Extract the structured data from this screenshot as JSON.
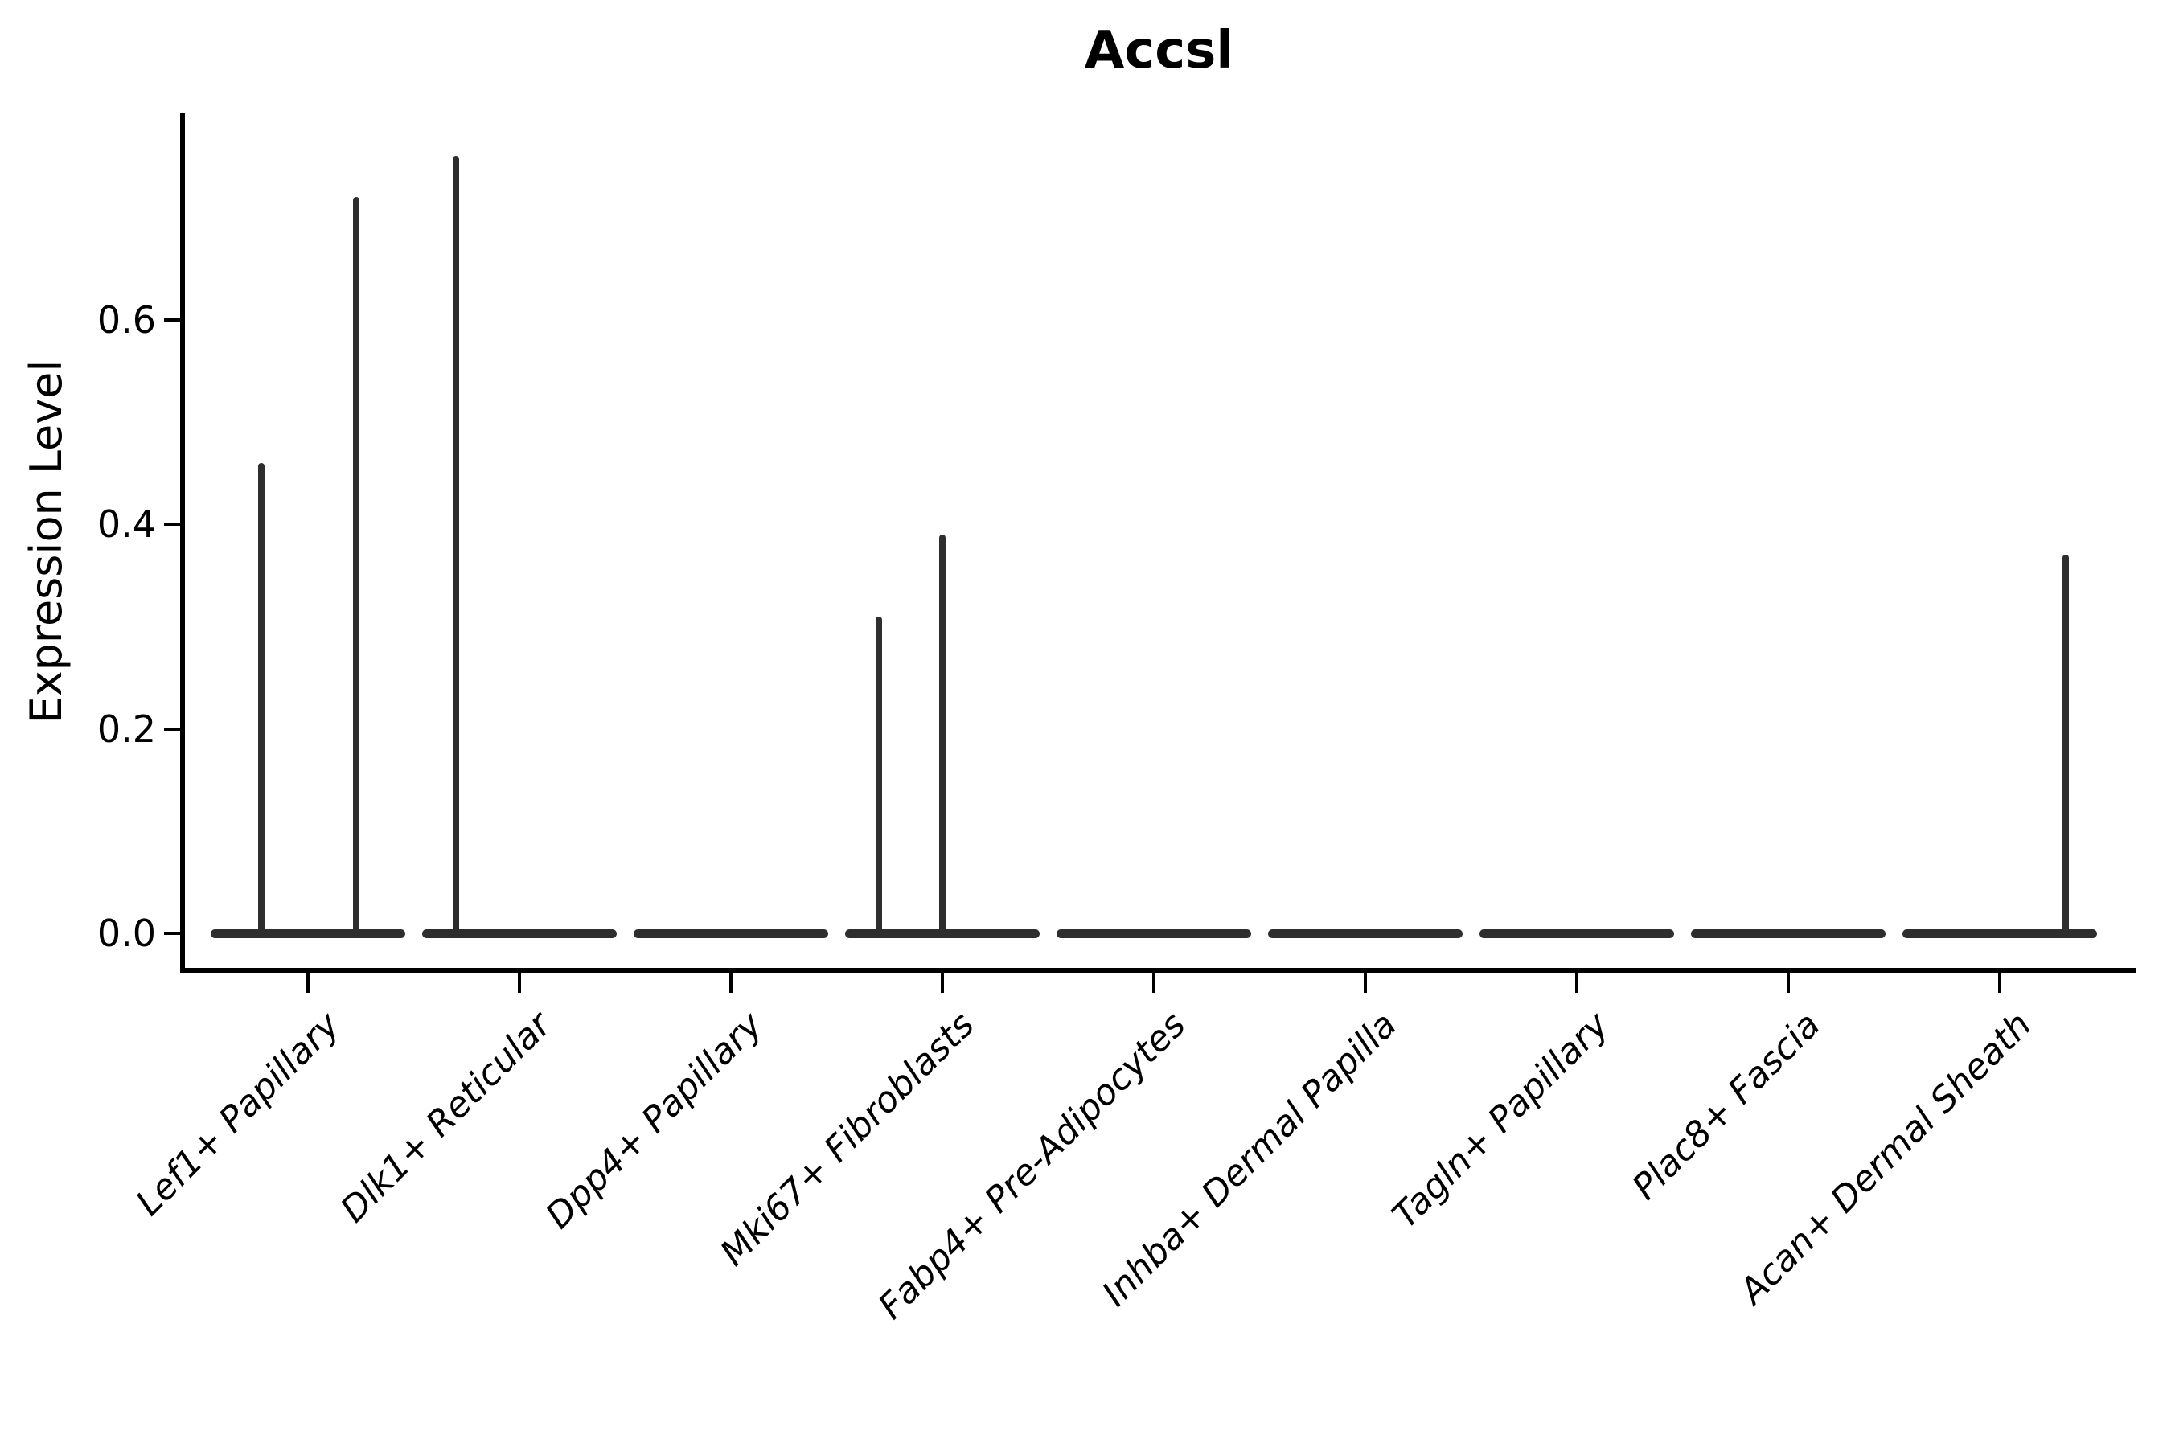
{
  "page": {
    "background": "#ffffff"
  },
  "chart_data": {
    "type": "violin",
    "title": "Accsl",
    "xlabel": "",
    "ylabel": "Expression Level",
    "ylim": [
      0,
      0.8
    ],
    "grid": false,
    "legend": "none",
    "ytick_labels": [
      "0.0",
      "0.2",
      "0.4",
      "0.6"
    ],
    "ytick_values": [
      0.0,
      0.2,
      0.4,
      0.6
    ],
    "categories": [
      "Lef1+ Papillary",
      "Dlk1+ Reticular",
      "Dpp4+ Papillary",
      "Mki67+ Fibroblasts",
      "Fabp4+ Pre-Adipocytes",
      "Inhba+ Dermal Papilla",
      "Tagln+ Papillary",
      "Plac8+ Fascia",
      "Acan+ Dermal Sheath"
    ],
    "violins": [
      {
        "category": "Lef1+ Papillary",
        "baseline_value": 0.0,
        "spikes": [
          {
            "dx": -0.22,
            "value": 0.46
          },
          {
            "dx": 0.23,
            "value": 0.72
          }
        ]
      },
      {
        "category": "Dlk1+ Reticular",
        "baseline_value": 0.0,
        "spikes": [
          {
            "dx": -0.3,
            "value": 0.76
          }
        ]
      },
      {
        "category": "Dpp4+ Papillary",
        "baseline_value": 0.0,
        "spikes": []
      },
      {
        "category": "Mki67+ Fibroblasts",
        "baseline_value": 0.0,
        "spikes": [
          {
            "dx": -0.3,
            "value": 0.31
          },
          {
            "dx": 0.0,
            "value": 0.39
          }
        ]
      },
      {
        "category": "Fabp4+ Pre-Adipocytes",
        "baseline_value": 0.0,
        "spikes": []
      },
      {
        "category": "Inhba+ Dermal Papilla",
        "baseline_value": 0.0,
        "spikes": []
      },
      {
        "category": "Tagln+ Papillary",
        "baseline_value": 0.0,
        "spikes": []
      },
      {
        "category": "Plac8+ Fascia",
        "baseline_value": 0.0,
        "spikes": []
      },
      {
        "category": "Acan+ Dermal Sheath",
        "baseline_value": 0.0,
        "spikes": [
          {
            "dx": 0.31,
            "value": 0.37
          }
        ]
      }
    ],
    "colors": {
      "mark": "#2e2e2e",
      "spine": "#000000",
      "text": "#000000",
      "background": "#ffffff"
    }
  }
}
